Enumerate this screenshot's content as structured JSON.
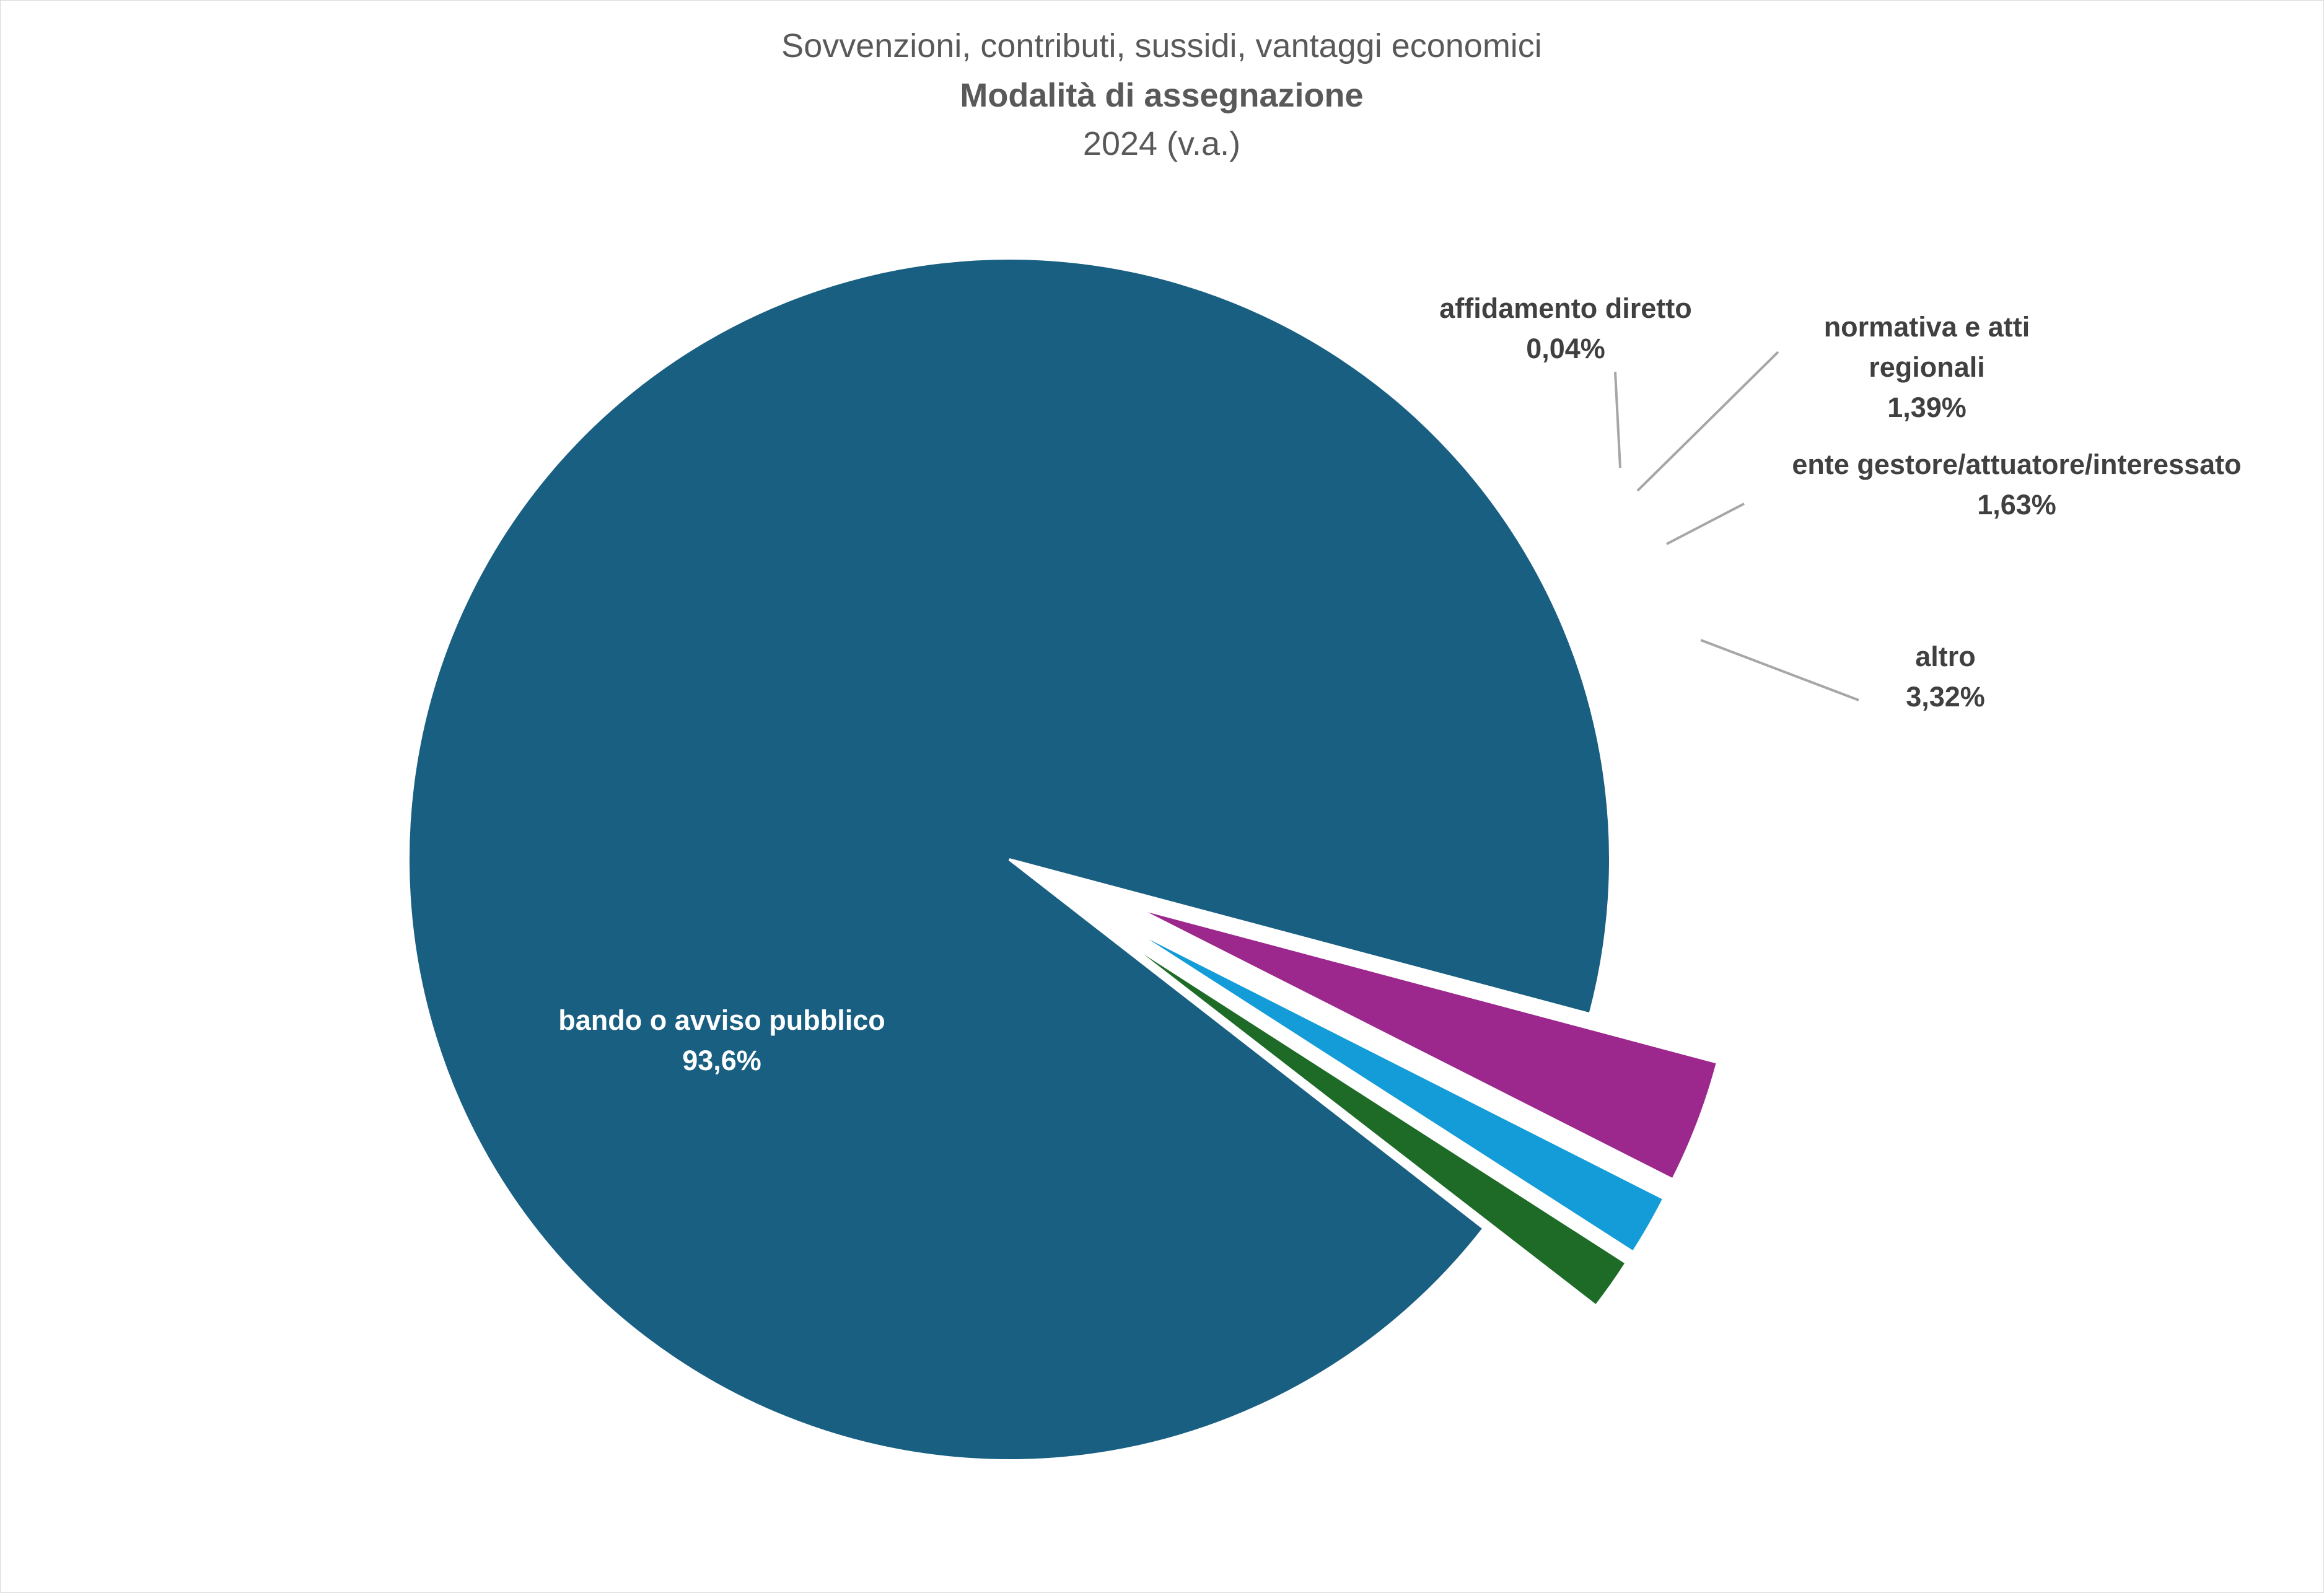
{
  "chart_data": {
    "type": "pie",
    "title_lines": [
      "Sovvenzioni, contributi, sussidi, vantaggi economici",
      "Modalità di assegnazione",
      "2024 (v.a.)"
    ],
    "categories": [
      "bando o avviso pubblico",
      "affidamento diretto",
      "normativa e atti regionali",
      "ente gestore/attuatore/interessato",
      "altro"
    ],
    "values": [
      93.6,
      0.04,
      1.39,
      1.63,
      3.32
    ],
    "value_labels": [
      "93,6%",
      "0,04%",
      "1,39%",
      "1,63%",
      "3,32%"
    ],
    "label_lines": [
      [
        "bando o avviso pubblico"
      ],
      [
        "affidamento diretto"
      ],
      [
        "normativa e atti",
        "regionali"
      ],
      [
        "ente gestore/attuatore/interessato"
      ],
      [
        "altro"
      ]
    ],
    "colors": [
      "#185f82",
      "#7f4f8f",
      "#1e6b28",
      "#139cd8",
      "#9c288e"
    ],
    "exploded": [
      false,
      true,
      true,
      true,
      true
    ],
    "legend": "none",
    "data_labels": "category and percentage, with leader lines for small slices"
  }
}
